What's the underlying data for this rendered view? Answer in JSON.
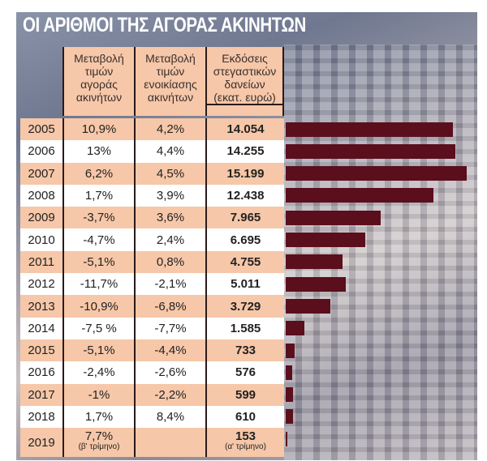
{
  "title": "ΟΙ ΑΡΙΘΜΟΙ ΤΗΣ ΑΓΟΡΑΣ ΑΚΙΝΗΤΩΝ",
  "headers": [
    [
      "Μεταβολή",
      "τιμών",
      "αγοράς",
      "ακινήτων"
    ],
    [
      "Μεταβολή",
      "τιμών",
      "ενοικίασης",
      "ακινήτων"
    ],
    [
      "Εκδόσεις",
      "στεγαστικών",
      "δανείων",
      "(εκατ. ευρώ)"
    ]
  ],
  "colors": {
    "bar": "#5b0e1c",
    "header": "#f6c7a8"
  },
  "chart_data": {
    "type": "bar",
    "orientation": "horizontal",
    "categories": [
      "2005",
      "2006",
      "2007",
      "2008",
      "2009",
      "2010",
      "2011",
      "2012",
      "2013",
      "2014",
      "2015",
      "2016",
      "2017",
      "2018",
      "2019"
    ],
    "values": [
      14054,
      14255,
      15199,
      12438,
      7965,
      6695,
      4755,
      5011,
      3729,
      1585,
      733,
      576,
      599,
      610,
      153
    ],
    "xlim": [
      0,
      15199
    ]
  },
  "rows": [
    {
      "year": "2005",
      "buy": "10,9%",
      "rent": "4,2%",
      "loans": "14.054"
    },
    {
      "year": "2006",
      "buy": "13%",
      "rent": "4,4%",
      "loans": "14.255"
    },
    {
      "year": "2007",
      "buy": "6,2%",
      "rent": "4,5%",
      "loans": "15.199"
    },
    {
      "year": "2008",
      "buy": "1,7%",
      "rent": "3,9%",
      "loans": "12.438"
    },
    {
      "year": "2009",
      "buy": "-3,7%",
      "rent": "3,6%",
      "loans": "7.965"
    },
    {
      "year": "2010",
      "buy": "-4,7%",
      "rent": "2,4%",
      "loans": "6.695"
    },
    {
      "year": "2011",
      "buy": "-5,1%",
      "rent": "0,8%",
      "loans": "4.755"
    },
    {
      "year": "2012",
      "buy": "-11,7%",
      "rent": "-2,1%",
      "loans": "5.011"
    },
    {
      "year": "2013",
      "buy": "-10,9%",
      "rent": "-6,8%",
      "loans": "3.729"
    },
    {
      "year": "2014",
      "buy": "-7,5 %",
      "rent": "-7,7%",
      "loans": "1.585"
    },
    {
      "year": "2015",
      "buy": "-5,1%",
      "rent": "-4,4%",
      "loans": "733"
    },
    {
      "year": "2016",
      "buy": "-2,4%",
      "rent": "-2,6%",
      "loans": "576"
    },
    {
      "year": "2017",
      "buy": "-1%",
      "rent": "-2,2%",
      "loans": "599"
    },
    {
      "year": "2018",
      "buy": "1,7%",
      "rent": "8,4%",
      "loans": "610"
    },
    {
      "year": "2019",
      "buy": "7,7%",
      "buy_note": "(β' τρίμηνο)",
      "rent": "",
      "loans": "153",
      "loans_note": "(α' τρίμηνο)"
    }
  ]
}
